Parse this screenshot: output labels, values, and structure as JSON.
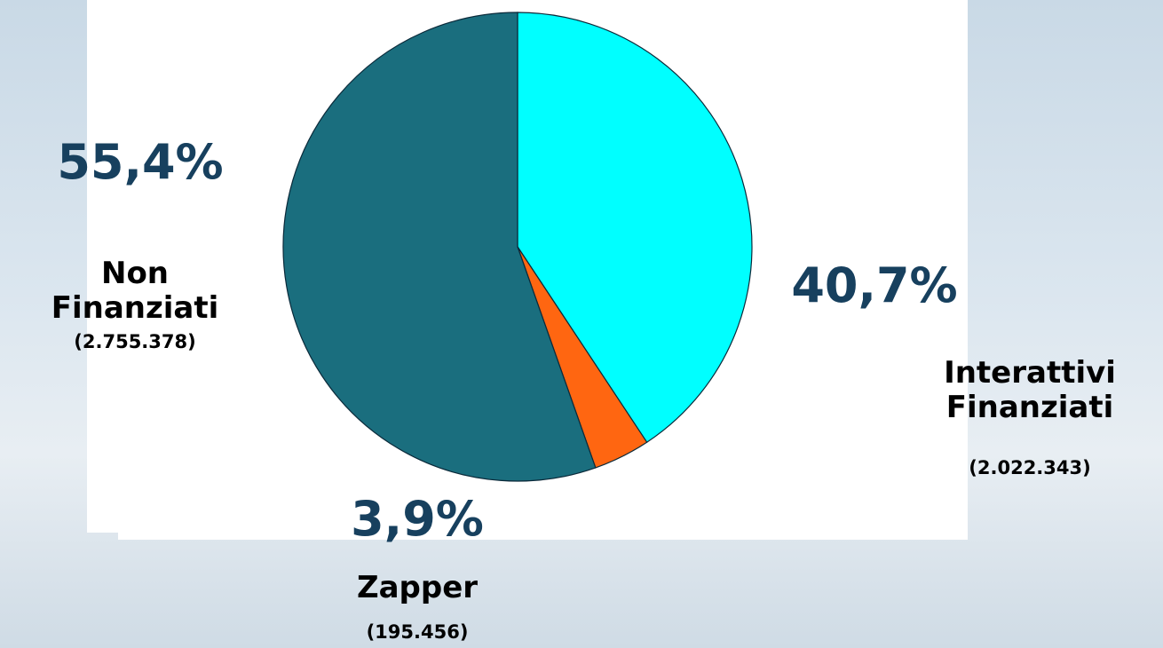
{
  "chart_data": {
    "type": "pie",
    "categories": [
      "Interattivi Finanziati",
      "Zapper",
      "Non Finanziati"
    ],
    "values": [
      40.7,
      3.9,
      55.4
    ],
    "value_labels": [
      "40,7%",
      "3,9%",
      "55,4%"
    ],
    "details": [
      "(2.022.343)",
      "(195.456)",
      "(2.755.378)"
    ],
    "colors": [
      "#00ffff",
      "#ff6611",
      "#1a6e7e"
    ]
  }
}
